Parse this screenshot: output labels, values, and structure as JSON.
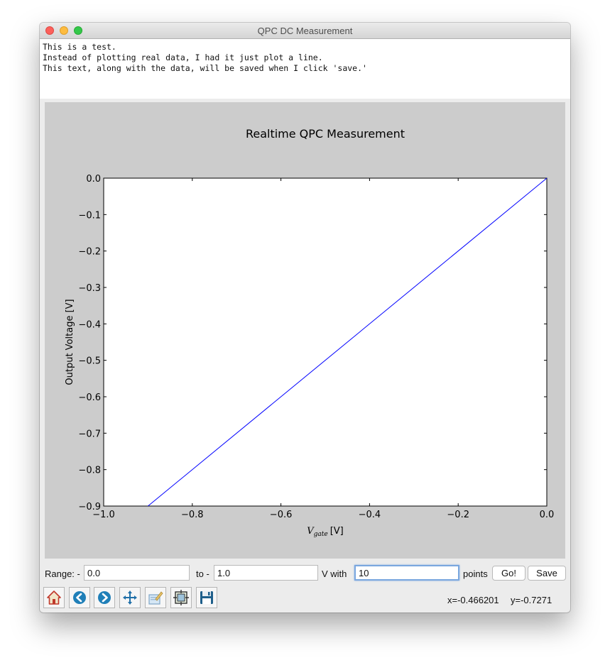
{
  "window": {
    "title": "QPC DC Measurement"
  },
  "notes": {
    "lines": [
      "This is a test.",
      "Instead of plotting real data, I had it just plot a line.",
      "This text, along with the data, will be saved when I click 'save.'"
    ]
  },
  "chart_data": {
    "type": "line",
    "title": "Realtime QPC Measurement",
    "xlabel_main": "V",
    "xlabel_sub": "gate",
    "xlabel_unit": "[V]",
    "ylabel": "Output Voltage [V]",
    "xlim": [
      -1.0,
      0.0
    ],
    "ylim": [
      -0.9,
      0.0
    ],
    "xticks": [
      -1.0,
      -0.8,
      -0.6,
      -0.4,
      -0.2,
      0.0
    ],
    "xtick_labels": [
      "−1.0",
      "−0.8",
      "−0.6",
      "−0.4",
      "−0.2",
      "0.0"
    ],
    "yticks": [
      0.0,
      -0.1,
      -0.2,
      -0.3,
      -0.4,
      -0.5,
      -0.6,
      -0.7,
      -0.8,
      -0.9
    ],
    "ytick_labels": [
      "0.0",
      "−0.1",
      "−0.2",
      "−0.3",
      "−0.4",
      "−0.5",
      "−0.6",
      "−0.7",
      "−0.8",
      "−0.9"
    ],
    "grid": false,
    "series": [
      {
        "color": "#0000ff",
        "x": [
          -0.9,
          0.0
        ],
        "y": [
          -0.9,
          0.0
        ]
      }
    ]
  },
  "controls": {
    "range_label": "Range: -",
    "range_start": "0.0",
    "to_label": "to -",
    "range_end": "1.0",
    "with_label": "V with",
    "points_value": "10",
    "points_label": "points",
    "go_label": "Go!",
    "save_label": "Save"
  },
  "toolbar": {
    "tools": [
      "home-icon",
      "back-arrow-icon",
      "forward-arrow-icon",
      "pan-arrows-icon",
      "zoom-rect-icon",
      "subplots-config-icon",
      "save-floppy-icon"
    ],
    "x_readout": "x=-0.466201",
    "y_readout": "y=-0.7271"
  }
}
